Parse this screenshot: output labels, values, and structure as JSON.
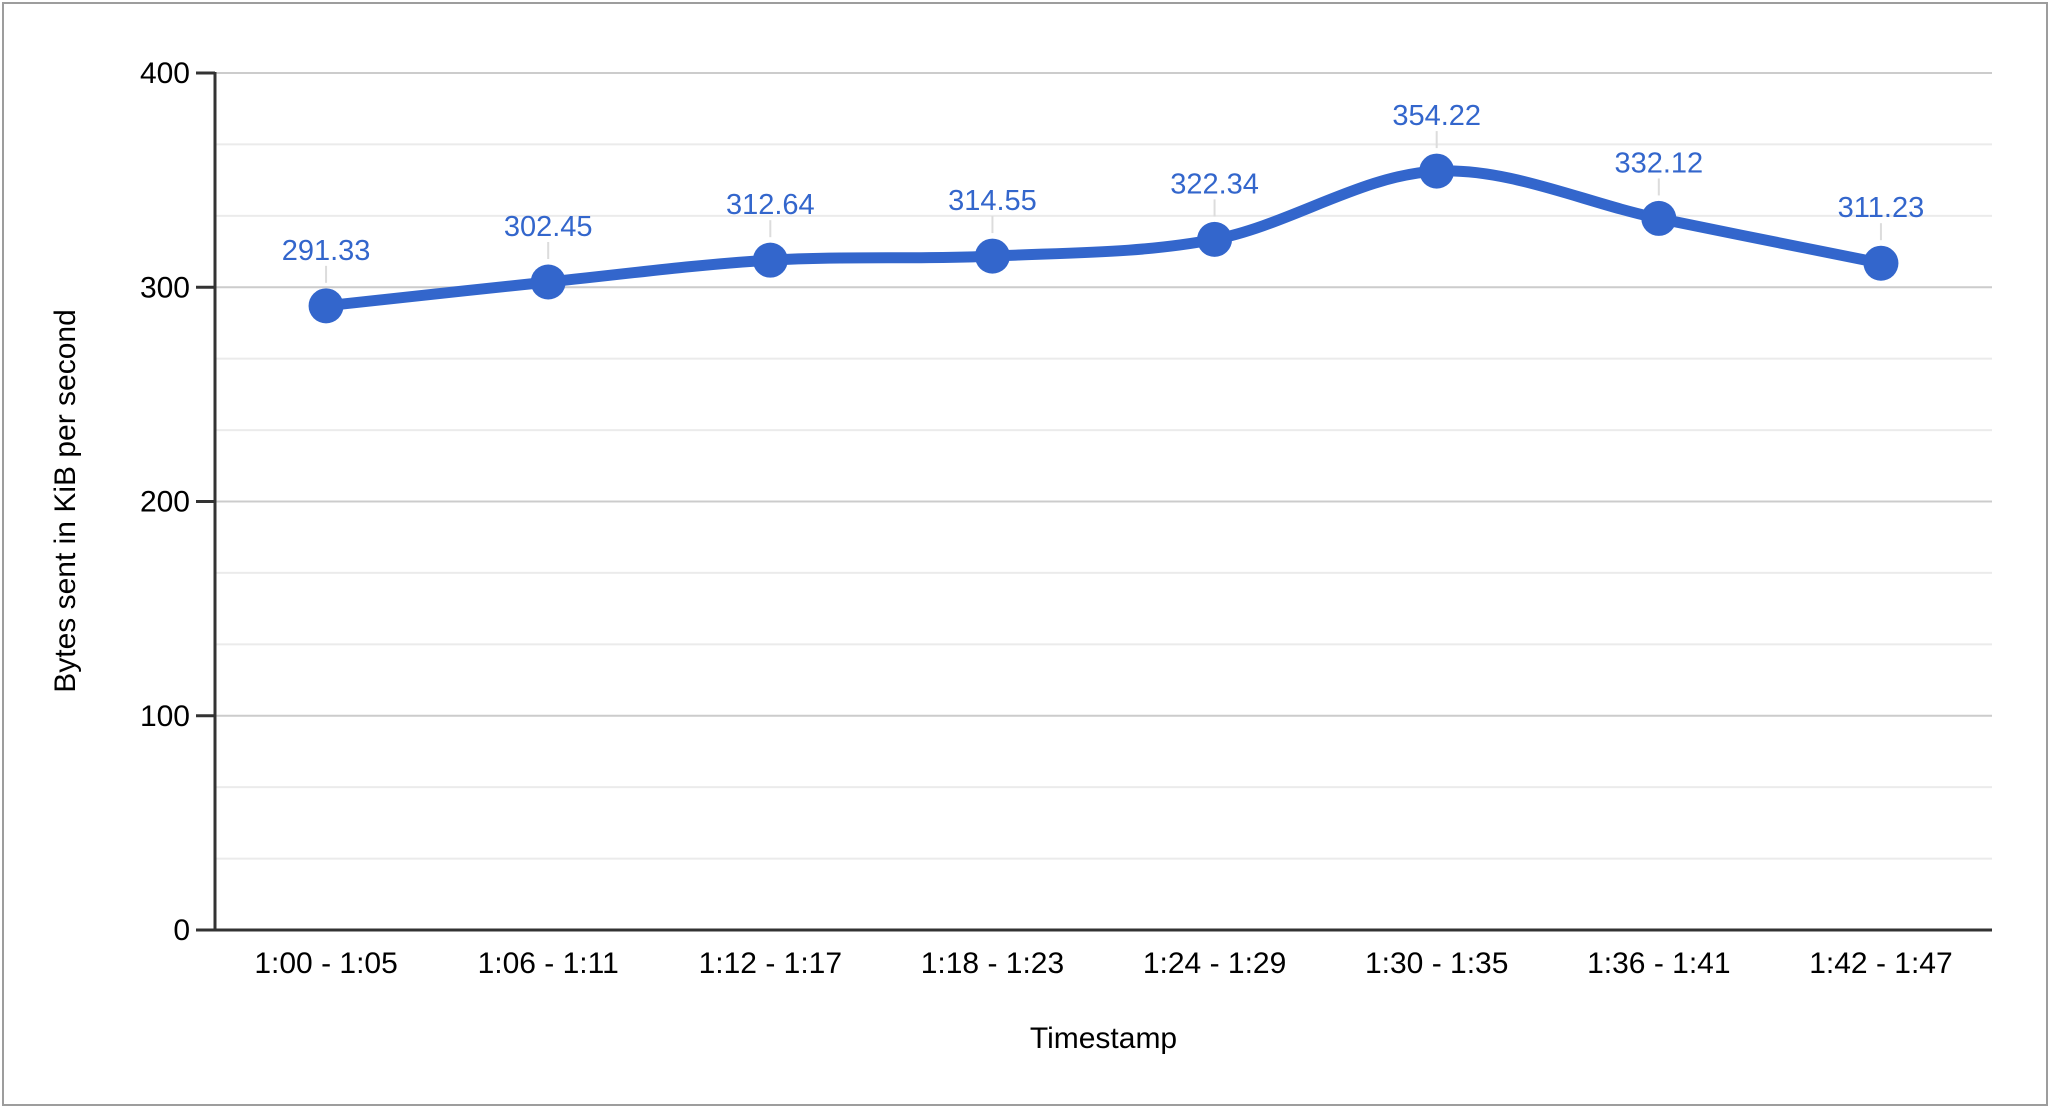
{
  "window": {
    "background": "#ffffff",
    "border_color": "#9d9d9d"
  },
  "chart_data": {
    "type": "line",
    "title": "",
    "xlabel": "Timestamp",
    "ylabel": "Bytes sent in KiB per second",
    "categories": [
      "1:00 - 1:05",
      "1:06 - 1:11",
      "1:12 - 1:17",
      "1:18 - 1:23",
      "1:24 - 1:29",
      "1:30 - 1:35",
      "1:36 - 1:41",
      "1:42 - 1:47"
    ],
    "values": [
      291.33,
      302.45,
      312.64,
      314.55,
      322.34,
      354.22,
      332.12,
      311.23
    ],
    "data_labels": [
      "291.33",
      "302.45",
      "312.64",
      "314.55",
      "322.34",
      "354.22",
      "332.12",
      "311.23"
    ],
    "y_ticks": [
      0,
      100,
      200,
      300,
      400
    ],
    "ylim": [
      0,
      400
    ],
    "minor_gridlines_per_interval": 2,
    "grid": true,
    "smooth_line": true,
    "legend_position": "none",
    "colors": {
      "series": "#3366cc",
      "major_grid": "#cccccc",
      "minor_grid": "#ebebeb",
      "axis": "#333333",
      "tick_text": "#000000",
      "label_stem": "#dcdcdc"
    }
  }
}
